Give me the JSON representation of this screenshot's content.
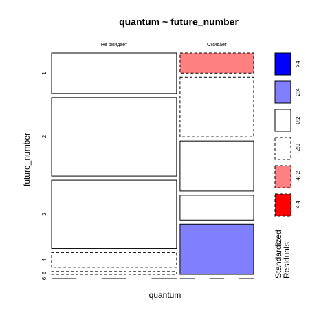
{
  "chart_data": {
    "type": "mosaic",
    "title": "quantum ~ future_number",
    "xlabel": "quantum",
    "ylabel": "future_number",
    "categories": [
      "1",
      "2",
      "3",
      "4",
      "5",
      "6"
    ],
    "series": [
      {
        "name": "Не ожидает",
        "values": [
          99,
          192,
          167,
          36,
          7,
          0
        ],
        "shade": [
          2,
          2,
          2,
          3,
          3,
          3
        ]
      },
      {
        "name": "Ожидает",
        "values": [
          29,
          86,
          72,
          36,
          72,
          0
        ],
        "shade": [
          4,
          3,
          2,
          2,
          1,
          2
        ]
      }
    ],
    "legend": {
      "title": [
        "Standardized",
        "Residuals:"
      ],
      "labels": [
        ">4",
        "2:4",
        "0:2",
        "-2:0",
        "-4:-2",
        "<-4"
      ],
      "colors": [
        "#0000ff",
        "#8080ff",
        "#ffffff",
        "#ffffff",
        "#ff8080",
        "#ff0000"
      ],
      "dashed": [
        false,
        false,
        false,
        true,
        true,
        true
      ]
    }
  }
}
